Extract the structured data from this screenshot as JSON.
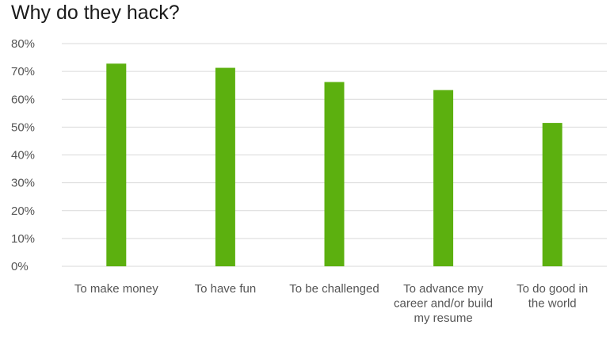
{
  "chart_data": {
    "type": "bar",
    "title": "Why do they hack?",
    "categories": [
      "To make money",
      "To have fun",
      "To be challenged",
      "To advance my career and/or build my resume",
      "To do good in the world"
    ],
    "category_lines": [
      [
        "To make money"
      ],
      [
        "To have fun"
      ],
      [
        "To be challenged"
      ],
      [
        "To advance my",
        "career and/or build",
        "my resume"
      ],
      [
        "To do good in",
        "the world"
      ]
    ],
    "values": [
      72.8,
      71.3,
      66.2,
      63.3,
      51.5
    ],
    "ylim": [
      0,
      80
    ],
    "yticks": [
      "0%",
      "10%",
      "20%",
      "30%",
      "40%",
      "50%",
      "60%",
      "70%",
      "80%"
    ],
    "xlabel": "",
    "ylabel": "",
    "grid": true,
    "bar_color": "#5cb00f",
    "grid_color": "#d9d9d9"
  }
}
